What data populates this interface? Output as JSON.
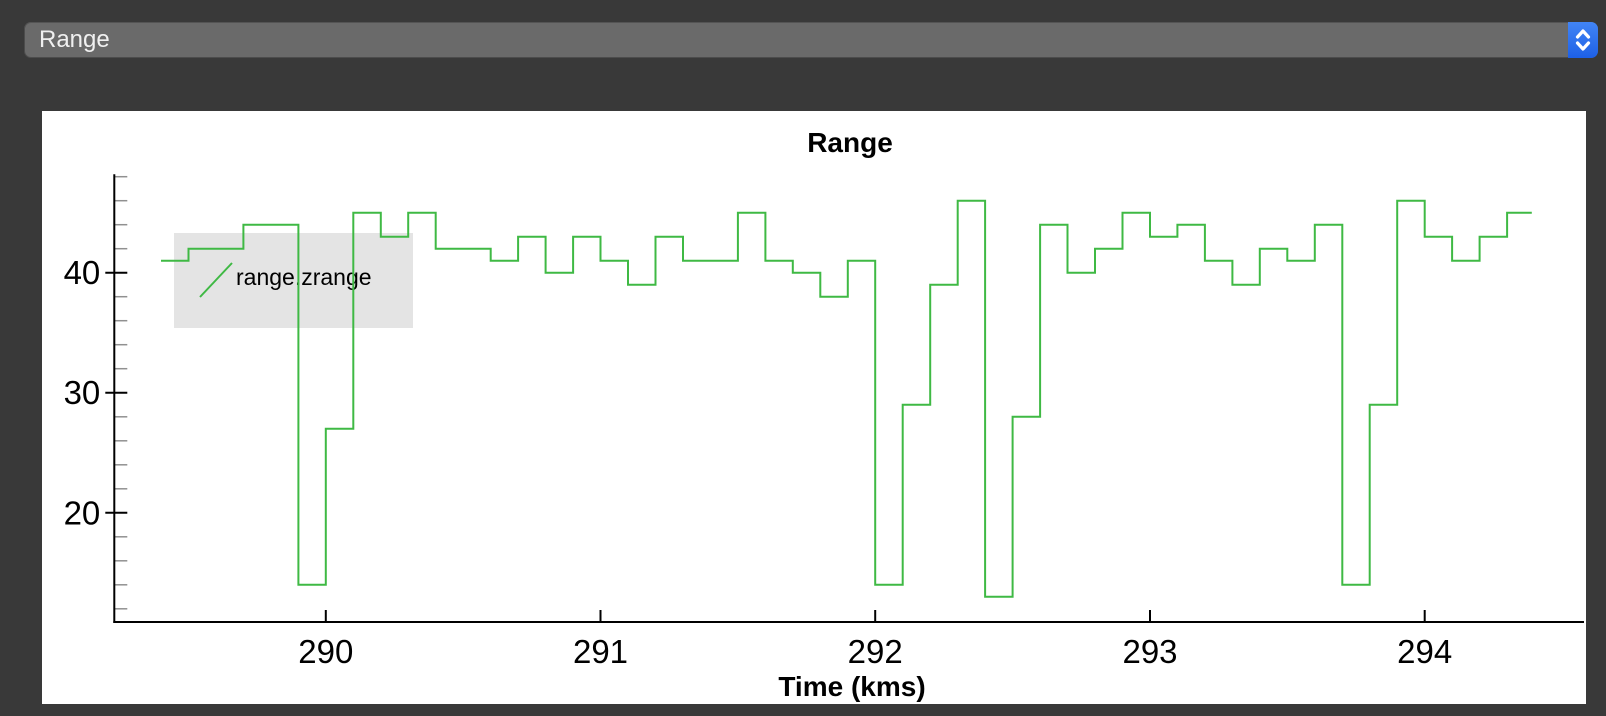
{
  "window": {
    "background": "#393939"
  },
  "dropdown": {
    "label": "Range"
  },
  "chart_data": {
    "type": "line",
    "interpolation": "step-after",
    "title": "Range",
    "xlabel": "Time (kms)",
    "ylabel": "",
    "xlim": [
      289.23,
      294.58
    ],
    "ylim": [
      10.9,
      48.2
    ],
    "x_ticks": [
      290,
      291,
      292,
      293,
      294
    ],
    "y_ticks": [
      40,
      30,
      20
    ],
    "y_minor_ticks": [
      48,
      46,
      44,
      42,
      38,
      36,
      34,
      32,
      28,
      26,
      24,
      22,
      18,
      16,
      14,
      12
    ],
    "grid": false,
    "legend": {
      "position": "upper-left",
      "label": "range.zrange"
    },
    "series": [
      {
        "name": "range.zrange",
        "color": "#3fb944",
        "x_start": 289.4,
        "x_step": 0.1,
        "x_end": 294.39,
        "values": [
          41,
          42,
          42,
          44,
          44,
          14,
          27,
          45,
          43,
          45,
          42,
          42,
          41,
          43,
          40,
          43,
          41,
          39,
          43,
          41,
          41,
          45,
          41,
          40,
          38,
          41,
          14,
          29,
          39,
          46,
          13,
          28,
          44,
          40,
          42,
          45,
          43,
          44,
          41,
          39,
          42,
          41,
          44,
          14,
          29,
          46,
          43,
          41,
          43,
          45
        ]
      }
    ],
    "colors": {
      "axis": "#000000",
      "major_tick": "#000000",
      "minor_tick": "#909090",
      "legend_bg": "#e4e4e4",
      "panel_bg": "#ffffff"
    }
  }
}
